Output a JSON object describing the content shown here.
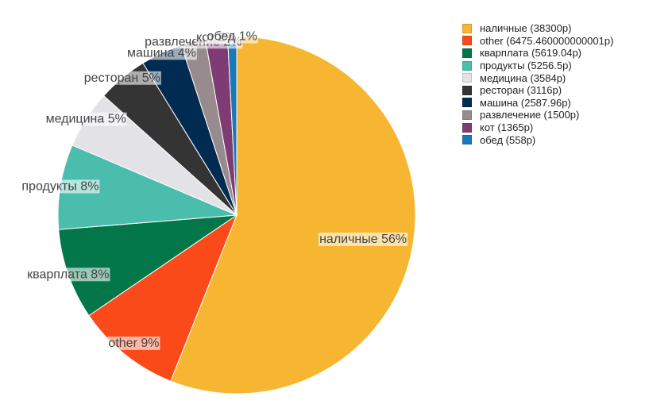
{
  "chart_data": {
    "type": "pie",
    "title": "",
    "start_angle_deg": 0,
    "direction": "clockwise",
    "series": [
      {
        "labels": [
          "наличные",
          "other",
          "кварплата",
          "продукты",
          "медицина",
          "ресторан",
          "машина",
          "развлечение",
          "кот",
          "обед"
        ],
        "values": [
          38300,
          6475.460000000001,
          5619.04,
          5256.5,
          3584,
          3116,
          2587.96,
          1500,
          1365,
          558
        ],
        "colors": [
          "#F6B631",
          "#FB4A1A",
          "#03774A",
          "#4BBDAD",
          "#E2E2E7",
          "#343434",
          "#022B52",
          "#988B8D",
          "#7F3C74",
          "#1B79B9"
        ],
        "slice_labels": [
          "наличные 56%",
          "other 9%",
          "кварплата 8%",
          "продукты 8%",
          "медицина 5%",
          "ресторан 5%",
          "машина 4%",
          "развлечение 2%",
          "кот 2%",
          "обед 1%"
        ]
      }
    ],
    "legend": {
      "placement": "top-right",
      "entries": [
        "наличные (38300р)",
        "other (6475.460000000001р)",
        "кварплата (5619.04р)",
        "продукты (5256.5р)",
        "медицина (3584р)",
        "ресторан (3116р)",
        "машина (2587.96р)",
        "развлечение (1500р)",
        "кот (1365р)",
        "обед (558р)"
      ]
    }
  }
}
